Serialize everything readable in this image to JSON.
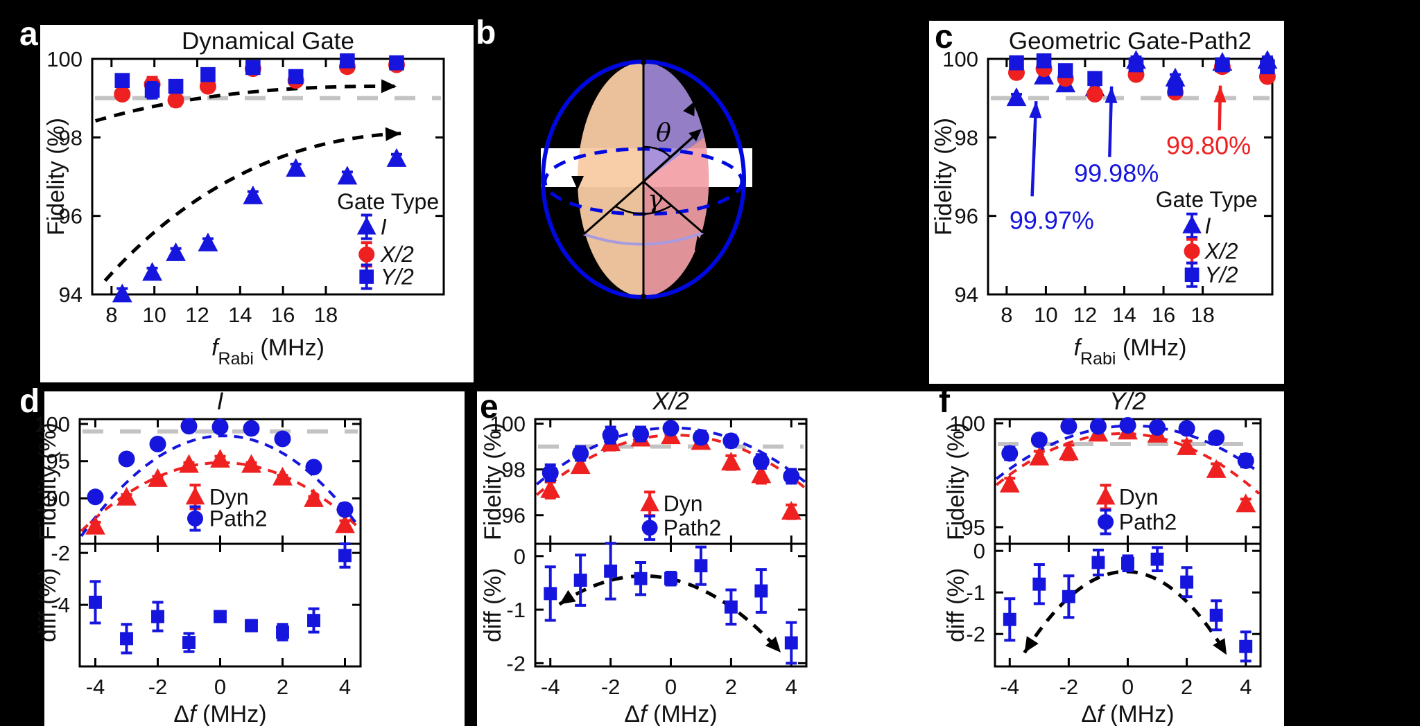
{
  "figure": {
    "panel_labels": {
      "a": "a",
      "b": "b",
      "c": "c",
      "d": "d",
      "e": "e",
      "f": "f"
    }
  },
  "colors": {
    "blue": "#1515dd",
    "red": "#ee2020",
    "black": "#000000",
    "gray_dashed": "#c3c3c3",
    "sphere_blue": "#0008e0",
    "lune_orange": "#f8cba4",
    "lune_purple": "#a18ad8",
    "lune_pink": "#f29fa6",
    "front_arc_purple": "#a79ae0",
    "white": "#ffffff"
  },
  "bloch": {
    "theta_label": "θ",
    "gamma_label": "γ"
  },
  "chart_data": [
    {
      "id": "a",
      "type": "scatter",
      "title": "Dynamical Gate",
      "title_italic": false,
      "xlabel_parts": [
        {
          "t": "f",
          "i": true
        },
        {
          "t": "Rabi",
          "sub": true
        },
        {
          "t": " (MHz)"
        }
      ],
      "ylabel": "Fidelity (%)",
      "xlim": [
        7.1,
        23.5
      ],
      "ylim": [
        94,
        100
      ],
      "xticks": [
        8,
        10,
        12,
        14,
        16,
        18
      ],
      "yticks": [
        94,
        96,
        98,
        100
      ],
      "refline_y": 99,
      "x": [
        8.5,
        9.9,
        11,
        12.5,
        14.6,
        16.6,
        19,
        21.3
      ],
      "series": [
        {
          "name": "I",
          "italic": true,
          "marker": "triangle",
          "color": "blue",
          "values": [
            94,
            94.55,
            95.05,
            95.3,
            96.5,
            97.2,
            97,
            97.45
          ],
          "yerr": [
            0.15,
            0.12,
            0.12,
            0.12,
            0.12,
            0.12,
            0.12,
            0.12
          ]
        },
        {
          "name": "X/2",
          "italic": true,
          "marker": "circle",
          "color": "red",
          "values": [
            99.1,
            99.35,
            98.95,
            99.3,
            99.75,
            99.45,
            99.8,
            99.85
          ],
          "yerr": [
            0.12,
            0.18,
            0.15,
            0.12,
            0.1,
            0.12,
            0.1,
            0.1
          ]
        },
        {
          "name": "Y/2",
          "italic": true,
          "marker": "square",
          "color": "blue",
          "values": [
            99.45,
            99.2,
            99.3,
            99.6,
            99.78,
            99.55,
            99.95,
            99.9
          ],
          "yerr": [
            0.15,
            0.2,
            0.15,
            0.15,
            0.1,
            0.12,
            0.1,
            0.1
          ]
        }
      ],
      "arrows": [
        {
          "from": [
            7.25,
            98.42
          ],
          "ctrl": [
            13,
            99.35
          ],
          "to": [
            21.3,
            99.3
          ],
          "dash": true,
          "color": "black",
          "heads": "end"
        },
        {
          "from": [
            7.7,
            94.35
          ],
          "ctrl": [
            13.5,
            97.9
          ],
          "to": [
            21.5,
            98.1
          ],
          "dash": true,
          "color": "black",
          "heads": "end"
        }
      ],
      "annotations": [],
      "ann_arrows": [],
      "legend": {
        "title": "Gate Type",
        "title_pos": [
          20.9,
          96.35
        ],
        "marker_x": 19.9,
        "label_x": 20.55,
        "item_y": [
          95.72,
          95.02,
          94.45
        ]
      }
    },
    {
      "id": "c",
      "type": "scatter",
      "title": "Geometric Gate-Path2",
      "title_italic": false,
      "xlabel_parts": [
        {
          "t": "f",
          "i": true
        },
        {
          "t": "Rabi",
          "sub": true
        },
        {
          "t": " (MHz)"
        }
      ],
      "ylabel": "Fidelity (%)",
      "xlim": [
        7.05,
        21.55
      ],
      "ylim": [
        94,
        100
      ],
      "xticks": [
        8,
        10,
        12,
        14,
        16,
        18
      ],
      "yticks": [
        94,
        96,
        98,
        100
      ],
      "refline_y": 99,
      "x": [
        8.5,
        9.9,
        11,
        12.5,
        14.6,
        16.6,
        19,
        21.3
      ],
      "series": [
        {
          "name": "I",
          "italic": true,
          "marker": "triangle",
          "color": "blue",
          "values": [
            99,
            99.55,
            99.35,
            99.25,
            99.95,
            99.5,
            99.9,
            99.95
          ],
          "yerr": [
            0.1,
            0.1,
            0.1,
            0.1,
            0.1,
            0.1,
            0.1,
            0.1
          ]
        },
        {
          "name": "X/2",
          "italic": true,
          "marker": "circle",
          "color": "red",
          "values": [
            99.65,
            99.75,
            99.5,
            99.1,
            99.6,
            99.15,
            99.8,
            99.55
          ],
          "yerr": [
            0.1,
            0.1,
            0.1,
            0.1,
            0.1,
            0.1,
            0.1,
            0.1
          ]
        },
        {
          "name": "Y/2",
          "italic": true,
          "marker": "square",
          "color": "blue",
          "values": [
            99.9,
            99.95,
            99.7,
            99.5,
            99.85,
            99.25,
            99.85,
            99.8
          ],
          "yerr": [
            0.1,
            0.1,
            0.1,
            0.1,
            0.1,
            0.1,
            0.1,
            0.1
          ]
        }
      ],
      "arrows": [],
      "annotations": [
        {
          "text": "99.97%",
          "color": "blue",
          "pos": [
            10.3,
            95.9
          ]
        },
        {
          "text": "99.98%",
          "color": "blue",
          "pos": [
            13.6,
            97.1
          ]
        },
        {
          "text": "99.80%",
          "color": "red",
          "pos": [
            18.3,
            97.8
          ]
        }
      ],
      "ann_arrows": [
        {
          "from": [
            9.3,
            96.5
          ],
          "to": [
            9.5,
            98.92
          ],
          "color": "blue"
        },
        {
          "from": [
            13.25,
            97.5
          ],
          "to": [
            13.35,
            99.3
          ],
          "color": "blue"
        },
        {
          "from": [
            18.85,
            98.18
          ],
          "to": [
            18.9,
            99.32
          ],
          "color": "red"
        }
      ],
      "legend": {
        "title": "Gate Type",
        "title_pos": [
          18.2,
          96.4
        ],
        "marker_x": 17.45,
        "label_x": 18.1,
        "item_y": [
          95.75,
          95.1,
          94.5
        ]
      }
    },
    {
      "id": "d",
      "type": "stacked",
      "title": "I",
      "title_italic": true,
      "xlabel_parts": [
        {
          "t": "Δ"
        },
        {
          "t": "f",
          "i": true
        },
        {
          "t": " (MHz)"
        }
      ],
      "xlim": [
        -4.5,
        4.5
      ],
      "xticks": [
        -4,
        -2,
        0,
        2,
        4
      ],
      "x": [
        -4,
        -3,
        -2,
        -1,
        0,
        1,
        2,
        3,
        4
      ],
      "top": {
        "ylabel": "Fidelity (%)",
        "ylim": [
          83.9,
          100.65
        ],
        "yticks": [
          90,
          95,
          100
        ],
        "refline_y": 99,
        "series": [
          {
            "name": "Dyn",
            "italic": false,
            "marker": "triangle",
            "color": "red",
            "values": [
              86.2,
              90.1,
              92.6,
              94.5,
              95.2,
              94.5,
              92.8,
              89.9,
              86.4
            ],
            "yerr": [
              0.6,
              0.4,
              0.35,
              0.3,
              0.45,
              0.3,
              0.3,
              0.35,
              0.6
            ],
            "fit": {
              "a": -0.454,
              "b": 0.046,
              "c": 94.8
            }
          },
          {
            "name": "Path2",
            "italic": false,
            "marker": "circle",
            "color": "blue",
            "values": [
              90.2,
              95.3,
              97.3,
              99.7,
              99.6,
              99.4,
              98,
              94.2,
              88.5
            ],
            "yerr": [
              0.6,
              0.35,
              0.3,
              0.25,
              0.25,
              0.25,
              0.3,
              0.35,
              0.7
            ],
            "fit": {
              "a": -0.649,
              "b": 0.14,
              "c": 98.4
            }
          }
        ],
        "legend": {
          "marker_x": -0.8,
          "label_x": -0.35,
          "item_y": [
            90.2,
            87.3
          ]
        }
      },
      "bot": {
        "ylabel": "diff (%)",
        "ylim": [
          -6.37,
          -1.65
        ],
        "yticks": [
          -2,
          -4
        ],
        "series": [
          {
            "name": "diff",
            "marker": "square",
            "color": "blue",
            "values": [
              -3.9,
              -5.3,
              -4.45,
              -5.45,
              -4.45,
              -4.8,
              -5.05,
              -4.6,
              -2.1
            ],
            "yerr": [
              0.8,
              0.55,
              0.55,
              0.35,
              0.12,
              0.2,
              0.3,
              0.45,
              0.45
            ]
          }
        ],
        "arrows": []
      }
    },
    {
      "id": "e",
      "type": "stacked",
      "title": "X/2",
      "title_italic": true,
      "xlabel_parts": [
        {
          "t": "Δ"
        },
        {
          "t": "f",
          "i": true
        },
        {
          "t": " (MHz)"
        }
      ],
      "xlim": [
        -4.5,
        4.5
      ],
      "xticks": [
        -4,
        -2,
        0,
        2,
        4
      ],
      "x": [
        -4,
        -3,
        -2,
        -1,
        0,
        1,
        2,
        3,
        4
      ],
      "top": {
        "ylabel": "Fidelity (%)",
        "ylim": [
          94.75,
          100.2
        ],
        "yticks": [
          96,
          98,
          100
        ],
        "refline_y": 99,
        "series": [
          {
            "name": "Dyn",
            "italic": false,
            "marker": "triangle",
            "color": "red",
            "values": [
              97.1,
              98.15,
              99.15,
              99.35,
              99.45,
              99.2,
              98.3,
              97.75,
              96.15
            ],
            "yerr": [
              0.35,
              0.25,
              0.3,
              0.25,
              0.25,
              0.2,
              0.3,
              0.35,
              0.3
            ],
            "fit": {
              "a": -0.124,
              "b": 0.035,
              "c": 99.5
            }
          },
          {
            "name": "Path2",
            "italic": false,
            "marker": "circle",
            "color": "blue",
            "values": [
              97.85,
              98.7,
              99.5,
              99.55,
              99.8,
              99.4,
              99.25,
              98.35,
              97.7
            ],
            "yerr": [
              0.35,
              0.3,
              0.35,
              0.3,
              0.2,
              0.25,
              0.25,
              0.3,
              0.3
            ],
            "fit": {
              "a": -0.122,
              "b": 0.012,
              "c": 99.82
            }
          }
        ],
        "legend": {
          "marker_x": -0.7,
          "label_x": -0.25,
          "item_y": [
            96.5,
            95.45
          ]
        }
      },
      "bot": {
        "ylabel": "diff (%)",
        "ylim": [
          -2.06,
          0.23
        ],
        "yticks": [
          0,
          -1,
          -2
        ],
        "series": [
          {
            "name": "diff",
            "marker": "square",
            "color": "blue",
            "values": [
              -0.7,
              -0.45,
              -0.28,
              -0.42,
              -0.42,
              -0.18,
              -0.95,
              -0.65,
              -1.62
            ],
            "yerr": [
              0.5,
              0.47,
              0.52,
              0.3,
              0.12,
              0.35,
              0.32,
              0.4,
              0.38
            ]
          }
        ],
        "arrows": [
          {
            "from": [
              -3.7,
              -0.9
            ],
            "ctrl": [
              0,
              0.5
            ],
            "to": [
              3.65,
              -1.8
            ],
            "dash": true,
            "color": "black",
            "heads": "both"
          }
        ]
      }
    },
    {
      "id": "f",
      "type": "stacked",
      "title": "Y/2",
      "title_italic": true,
      "xlabel_parts": [
        {
          "t": "Δ"
        },
        {
          "t": "f",
          "i": true
        },
        {
          "t": " (MHz)"
        }
      ],
      "xlim": [
        -4.5,
        4.5
      ],
      "xticks": [
        -4,
        -2,
        0,
        2,
        4
      ],
      "x": [
        -4,
        -3,
        -2,
        -1,
        0,
        1,
        2,
        3,
        4
      ],
      "top": {
        "ylabel": "Fidelity (%)",
        "ylim": [
          94.2,
          100.2
        ],
        "yticks": [
          95,
          100
        ],
        "refline_y": 99,
        "series": [
          {
            "name": "Dyn",
            "italic": false,
            "marker": "triangle",
            "color": "red",
            "values": [
              97.05,
              98.35,
              98.6,
              99.5,
              99.6,
              99.45,
              98.85,
              97.75,
              96.1
            ],
            "yerr": [
              0.3,
              0.3,
              0.35,
              0.2,
              0.15,
              0.2,
              0.3,
              0.3,
              0.25
            ],
            "fit": {
              "a": -0.135,
              "b": -0.047,
              "c": 99.5
            }
          },
          {
            "name": "Path2",
            "italic": false,
            "marker": "circle",
            "color": "blue",
            "values": [
              98.55,
              99.2,
              99.85,
              99.85,
              99.9,
              99.8,
              99.75,
              99.3,
              98.2
            ],
            "yerr": [
              0.3,
              0.25,
              0.2,
              0.15,
              0.12,
              0.15,
              0.2,
              0.25,
              0.3
            ],
            "fit": {
              "a": -0.121,
              "b": 0.035,
              "c": 99.88
            }
          }
        ],
        "legend": {
          "marker_x": -0.75,
          "label_x": -0.3,
          "item_y": [
            96.45,
            95.25
          ]
        }
      },
      "bot": {
        "ylabel": "diff (%)",
        "ylim": [
          -2.78,
          0.17
        ],
        "yticks": [
          0,
          -1,
          -2
        ],
        "series": [
          {
            "name": "diff",
            "marker": "square",
            "color": "blue",
            "values": [
              -1.65,
              -0.8,
              -1.1,
              -0.28,
              -0.3,
              -0.2,
              -0.75,
              -1.55,
              -2.3
            ],
            "yerr": [
              0.5,
              0.47,
              0.5,
              0.3,
              0.18,
              0.28,
              0.35,
              0.35,
              0.35
            ]
          }
        ],
        "arrows": [
          {
            "from": [
              -3.5,
              -2.45
            ],
            "ctrl": [
              0,
              1.48
            ],
            "to": [
              3.35,
              -2.5
            ],
            "dash": true,
            "color": "black",
            "heads": "both"
          }
        ]
      }
    }
  ]
}
